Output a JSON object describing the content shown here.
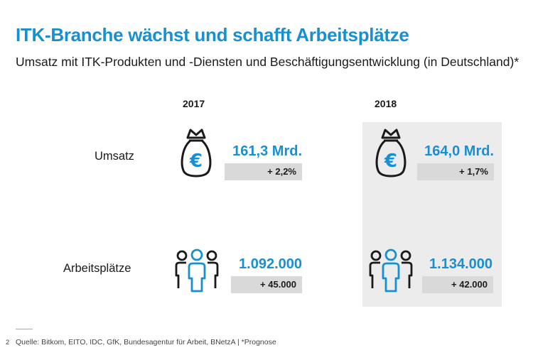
{
  "header": {
    "title": "ITK-Branche wächst und schafft Arbeitsplätze",
    "subtitle": "Umsatz mit ITK-Produkten und -Diensten und Beschäftigungsentwicklung (in Deutschland)*"
  },
  "chart_data": {
    "type": "table",
    "columns": [
      "2017",
      "2018"
    ],
    "rows": [
      {
        "label": "Umsatz",
        "icon": "money-bag-euro-icon",
        "values": [
          "161,3 Mrd.",
          "164,0 Mrd."
        ],
        "changes": [
          "+ 2,2%",
          "+ 1,7%"
        ]
      },
      {
        "label": "Arbeitsplätze",
        "icon": "people-group-icon",
        "values": [
          "1.092.000",
          "1.134.000"
        ],
        "changes": [
          "+ 45.000",
          "+ 42.000"
        ]
      }
    ],
    "highlighted_column": "2018"
  },
  "footer": {
    "page_number": "2",
    "source": "Quelle: Bitkom, EITO, IDC, GfK, Bundesagentur für Arbeit, BNetzA | *Prognose"
  },
  "colors": {
    "accent": "#1890d0",
    "highlight_bg": "#ececec",
    "delta_bg": "#d9d9d9"
  }
}
